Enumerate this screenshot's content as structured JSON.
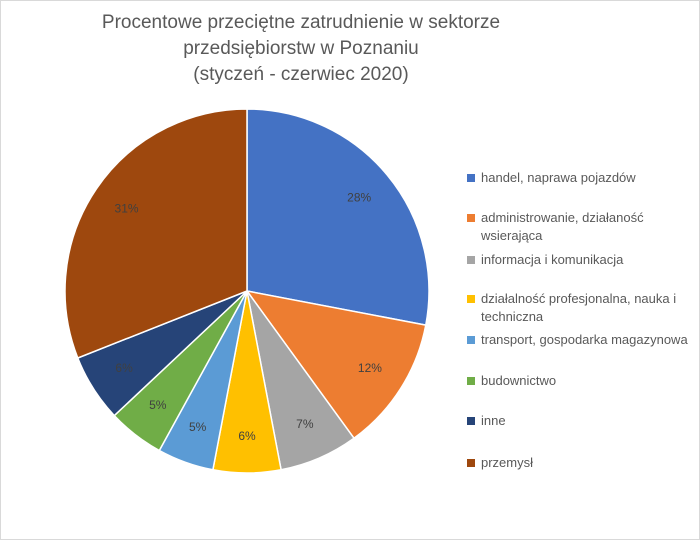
{
  "chart_data": {
    "type": "pie",
    "title": [
      "Procentowe przeciętne zatrudnienie w sektorze",
      "przedsiębiorstw w Poznaniu",
      "(styczeń - czerwiec 2020)"
    ],
    "categories": [
      "handel, naprawa pojazdów",
      "administrowanie, działaność wsierająca",
      "informacja i komunikacja",
      "działalność profesjonalna, nauka i techniczna",
      "transport, gospodarka magazynowa",
      "budownictwo",
      "inne",
      "przemysł"
    ],
    "values": [
      28,
      12,
      7,
      6,
      5,
      5,
      6,
      31
    ],
    "value_labels": [
      "28%",
      "12%",
      "7%",
      "6%",
      "5%",
      "5%",
      "6%",
      "31%"
    ],
    "colors": [
      "#4472c4",
      "#ed7d31",
      "#a5a5a5",
      "#ffc000",
      "#5b9bd5",
      "#70ad47",
      "#264478",
      "#9e480e"
    ],
    "legend": "right"
  }
}
